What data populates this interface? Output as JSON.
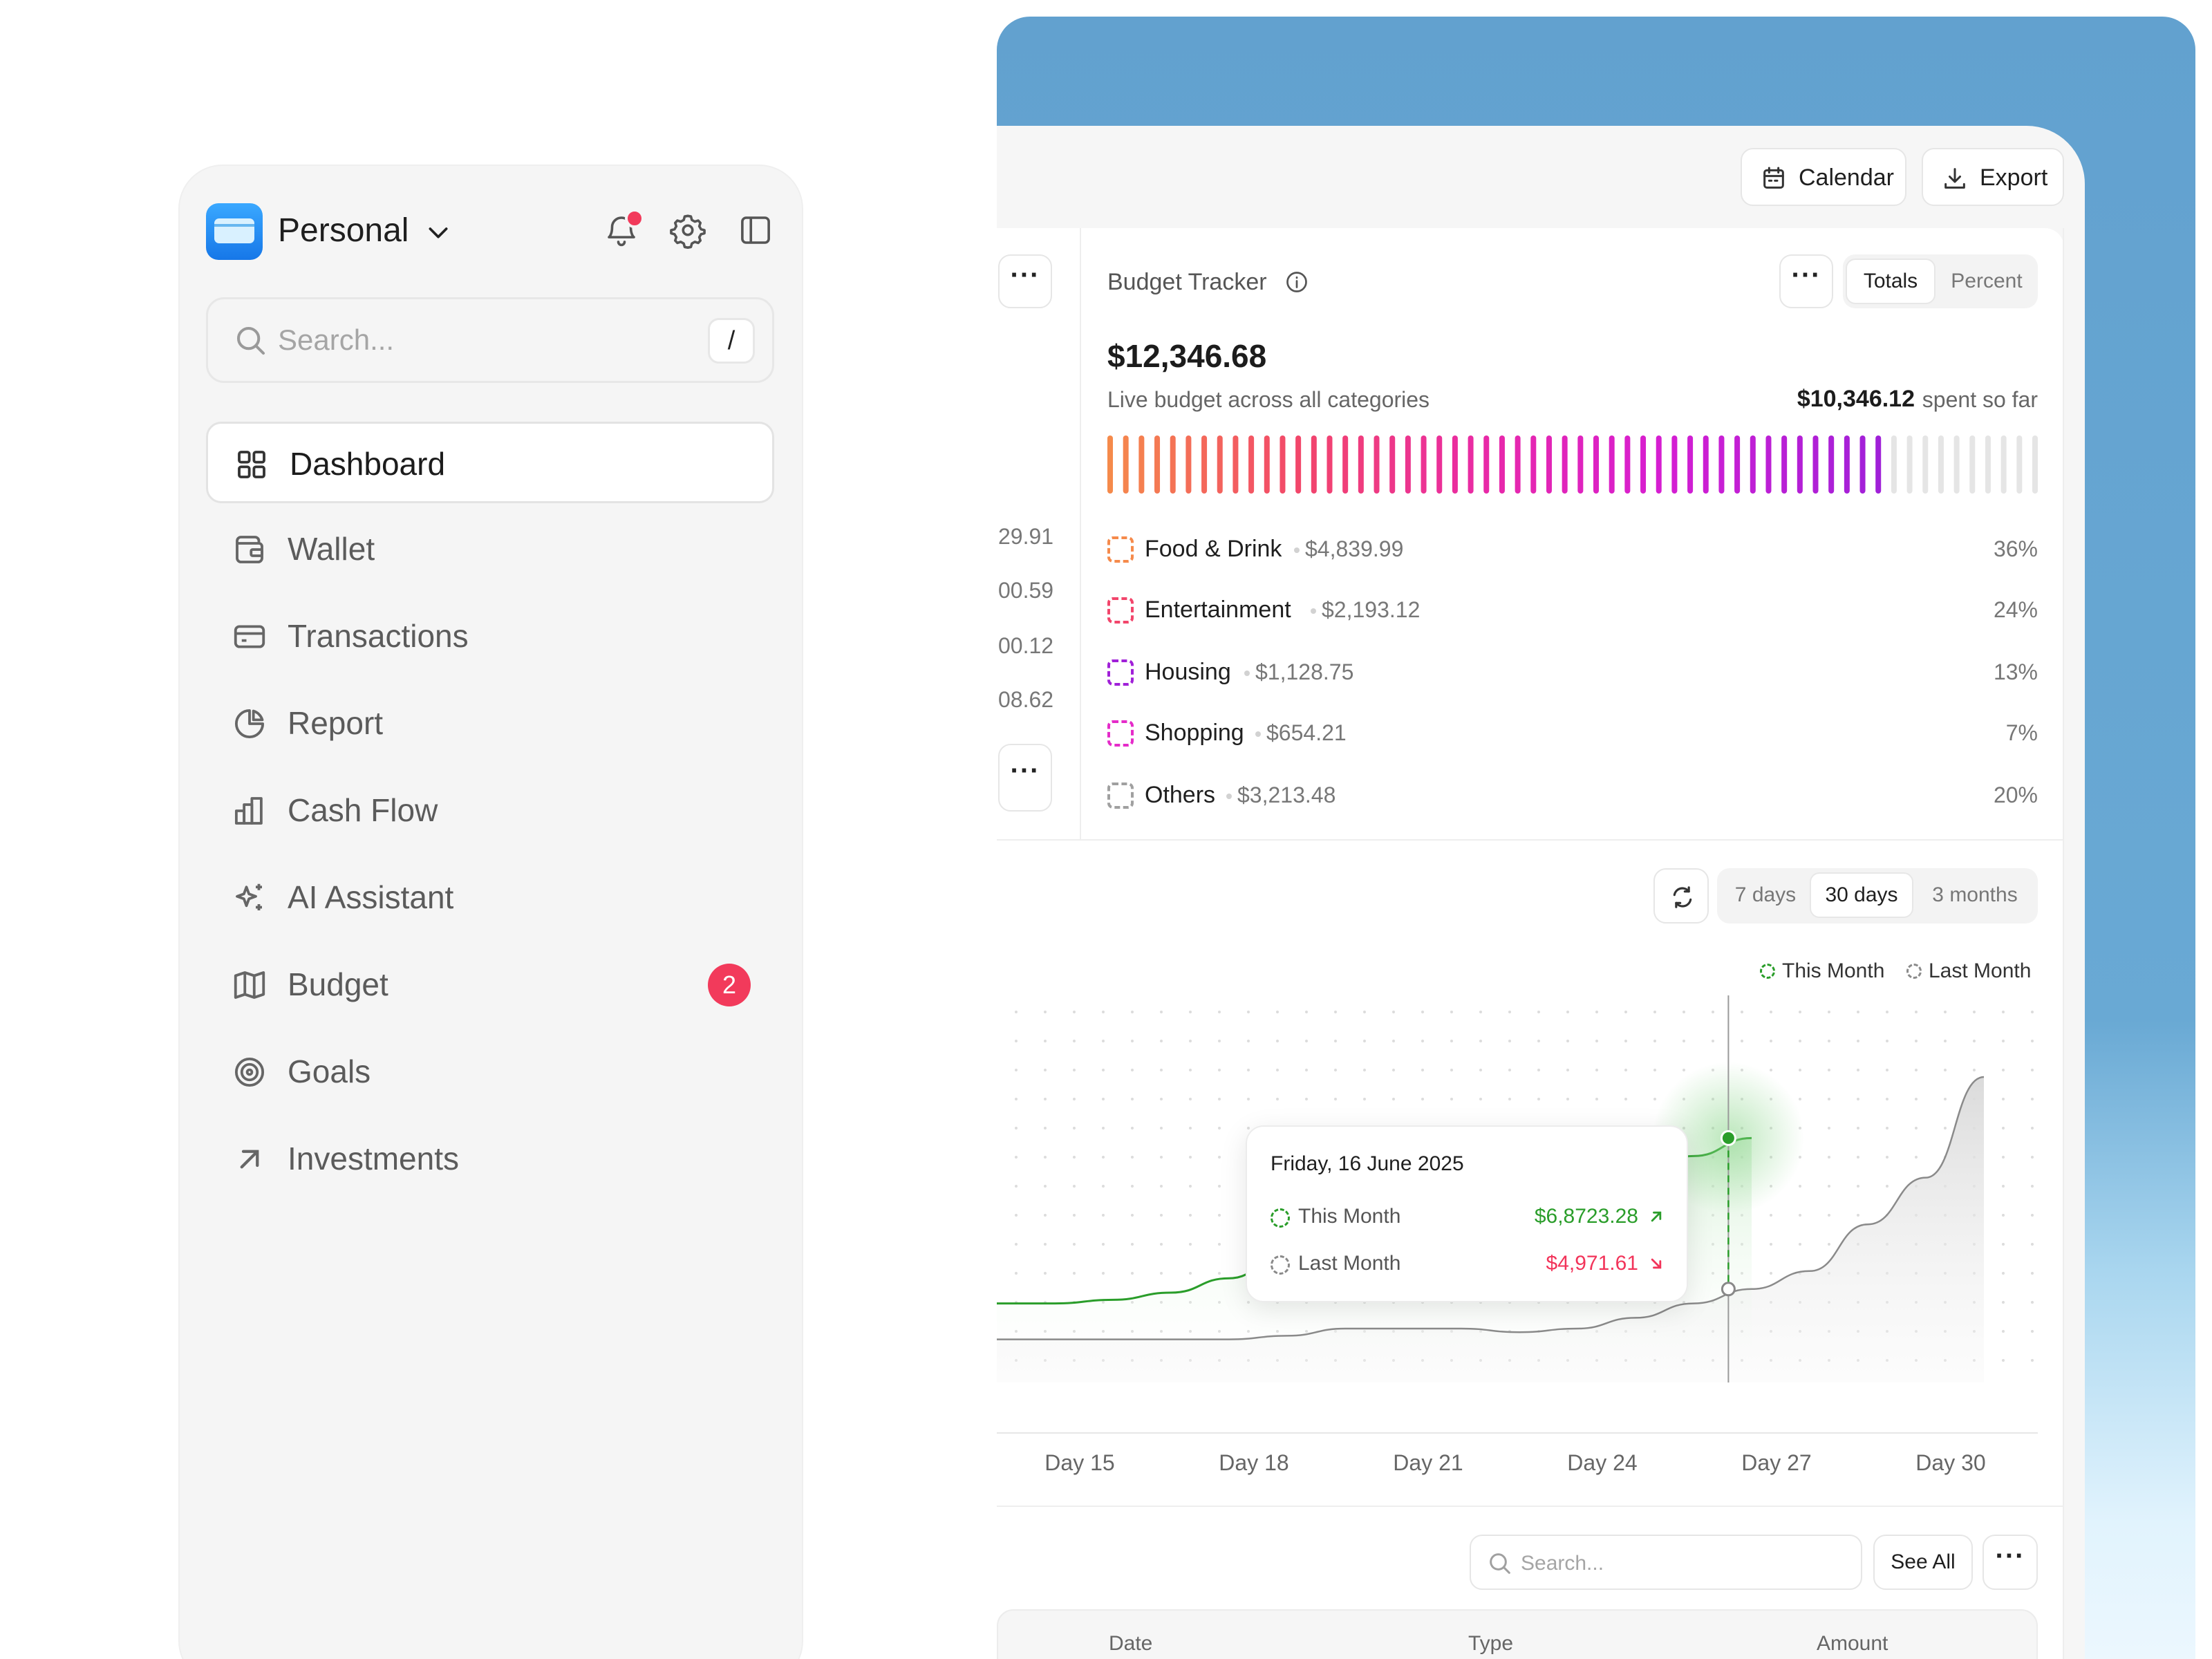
{
  "sidebar": {
    "workspace": "Personal",
    "search": {
      "placeholder": "Search...",
      "shortcut": "/"
    },
    "items": [
      {
        "label": "Dashboard",
        "icon": "dashboard-grid-icon",
        "active": true
      },
      {
        "label": "Wallet",
        "icon": "wallet-icon"
      },
      {
        "label": "Transactions",
        "icon": "credit-card-icon"
      },
      {
        "label": "Report",
        "icon": "pie-chart-icon"
      },
      {
        "label": "Cash Flow",
        "icon": "bar-chart-icon"
      },
      {
        "label": "AI Assistant",
        "icon": "sparkles-icon"
      },
      {
        "label": "Budget",
        "icon": "map-icon",
        "badge": "2"
      },
      {
        "label": "Goals",
        "icon": "target-icon"
      },
      {
        "label": "Investments",
        "icon": "arrow-up-right-icon"
      }
    ]
  },
  "toolbar": {
    "calendar_label": "Calendar",
    "export_label": "Export"
  },
  "left_column": {
    "values": [
      "29.91",
      "00.59",
      "00.12",
      "08.62"
    ]
  },
  "budget": {
    "title": "Budget Tracker",
    "total": "$12,346.68",
    "caption": "Live budget across all categories",
    "spent": "$10,346.12",
    "spent_caption": "spent so far",
    "spent_fraction": 0.838,
    "toggle": {
      "options": [
        "Totals",
        "Percent"
      ],
      "selected": "Totals"
    },
    "categories": [
      {
        "name": "Food & Drink",
        "amount": "$4,839.99",
        "percent": "36%",
        "color": "#f58a4b"
      },
      {
        "name": "Entertainment",
        "amount": "$2,193.12",
        "percent": "24%",
        "color": "#f2456b"
      },
      {
        "name": "Housing",
        "amount": "$1,128.75",
        "percent": "13%",
        "color": "#a020d8"
      },
      {
        "name": "Shopping",
        "amount": "$654.21",
        "percent": "7%",
        "color": "#e52bc9"
      },
      {
        "name": "Others",
        "amount": "$3,213.48",
        "percent": "20%",
        "color": "#a0a0a0"
      }
    ]
  },
  "chart_controls": {
    "ranges": [
      "7 days",
      "30 days",
      "3 months"
    ],
    "selected": "30 days",
    "legend": {
      "this_month": "This Month",
      "last_month": "Last Month"
    }
  },
  "tooltip": {
    "date": "Friday, 16 June 2025",
    "this_month_label": "This Month",
    "this_month_value": "$6,8723.28",
    "last_month_label": "Last Month",
    "last_month_value": "$4,971.61"
  },
  "chart_data": {
    "type": "line",
    "x_ticks": [
      "Day 15",
      "Day 18",
      "Day 21",
      "Day 24",
      "Day 27",
      "Day 30"
    ],
    "series": [
      {
        "name": "This Month",
        "color": "#2a9d2a",
        "x": [
          13,
          14,
          15,
          16,
          17,
          18,
          19,
          20,
          21,
          22,
          23,
          24,
          25,
          26
        ],
        "y": [
          0.22,
          0.22,
          0.23,
          0.25,
          0.29,
          0.36,
          0.42,
          0.43,
          0.44,
          0.47,
          0.52,
          0.58,
          0.63,
          0.68
        ]
      },
      {
        "name": "Last Month",
        "color": "#8a8a8a",
        "x": [
          13,
          14,
          15,
          16,
          17,
          18,
          19,
          20,
          21,
          22,
          23,
          24,
          25,
          26,
          27,
          28,
          29,
          30
        ],
        "y": [
          0.12,
          0.12,
          0.12,
          0.12,
          0.12,
          0.13,
          0.15,
          0.15,
          0.15,
          0.14,
          0.15,
          0.18,
          0.22,
          0.26,
          0.31,
          0.44,
          0.57,
          0.85
        ]
      }
    ],
    "highlight_day": 25.6,
    "ylim": [
      0,
      1
    ],
    "grid": "dots"
  },
  "table": {
    "search_placeholder": "Search...",
    "see_all": "See All",
    "columns": [
      "Date",
      "Type",
      "Amount"
    ]
  }
}
